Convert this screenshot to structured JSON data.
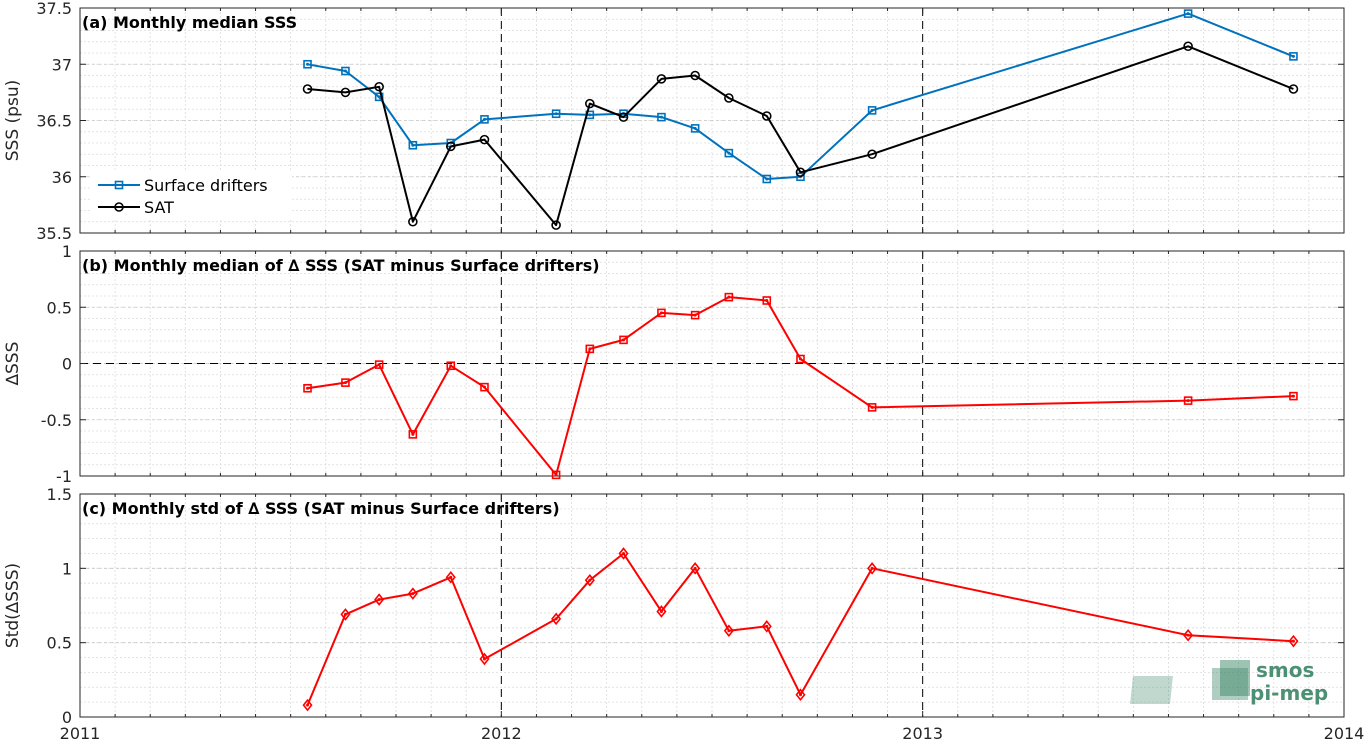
{
  "colors": {
    "drifters": "#0072bd",
    "sat": "#000000",
    "delta": "#ff0000",
    "logo": "#2e7d5b"
  },
  "logo": {
    "line1": "smos",
    "line2": "pi-mep"
  },
  "chart_data": [
    {
      "type": "line",
      "title": "(a) Monthly median SSS",
      "ylabel": "SSS (psu)",
      "ylim": [
        35.5,
        37.5
      ],
      "xlim": [
        2011,
        2014
      ],
      "yticks": [
        "35.5",
        "36",
        "36.5",
        "37",
        "37.5"
      ],
      "xticks": [
        "2011",
        "2012",
        "2013",
        "2014"
      ],
      "grid": true,
      "legend_position": "lower-left",
      "series": [
        {
          "name": "Surface drifters",
          "marker": "square",
          "x": [
            2011.54,
            2011.63,
            2011.71,
            2011.79,
            2011.88,
            2011.96,
            2012.13,
            2012.21,
            2012.29,
            2012.38,
            2012.46,
            2012.54,
            2012.63,
            2012.71,
            2012.88,
            2013.63,
            2013.88
          ],
          "y": [
            37.0,
            36.94,
            36.71,
            36.28,
            36.3,
            36.51,
            36.56,
            36.55,
            36.56,
            36.53,
            36.43,
            36.21,
            35.98,
            36.0,
            36.59,
            37.45,
            37.07
          ]
        },
        {
          "name": "SAT",
          "marker": "circle",
          "x": [
            2011.54,
            2011.63,
            2011.71,
            2011.79,
            2011.88,
            2011.96,
            2012.13,
            2012.21,
            2012.29,
            2012.38,
            2012.46,
            2012.54,
            2012.63,
            2012.71,
            2012.88,
            2013.63,
            2013.88
          ],
          "y": [
            36.78,
            36.75,
            36.8,
            35.6,
            36.27,
            36.33,
            35.57,
            36.65,
            36.53,
            36.87,
            36.9,
            36.7,
            36.54,
            36.04,
            36.2,
            37.16,
            36.78
          ]
        }
      ]
    },
    {
      "type": "line",
      "title": "(b) Monthly median of ∆ SSS (SAT minus Surface drifters)",
      "ylabel": "∆SSS",
      "ylim": [
        -1,
        1
      ],
      "xlim": [
        2011,
        2014
      ],
      "yticks": [
        "-1",
        "-0.5",
        "0",
        "0.5",
        "1"
      ],
      "xticks": [
        "2011",
        "2012",
        "2013",
        "2014"
      ],
      "grid": true,
      "series": [
        {
          "marker": "square",
          "x": [
            2011.54,
            2011.63,
            2011.71,
            2011.79,
            2011.88,
            2011.96,
            2012.13,
            2012.21,
            2012.29,
            2012.38,
            2012.46,
            2012.54,
            2012.63,
            2012.71,
            2012.88,
            2013.63,
            2013.88
          ],
          "y": [
            -0.22,
            -0.17,
            -0.01,
            -0.63,
            -0.02,
            -0.21,
            -0.99,
            0.13,
            0.21,
            0.45,
            0.43,
            0.59,
            0.56,
            0.04,
            -0.39,
            -0.33,
            -0.29
          ]
        }
      ]
    },
    {
      "type": "line",
      "title": "(c) Monthly std of ∆ SSS (SAT minus Surface drifters)",
      "ylabel": "Std(∆SSS)",
      "ylim": [
        0,
        1.5
      ],
      "xlim": [
        2011,
        2014
      ],
      "yticks": [
        "0",
        "0.5",
        "1",
        "1.5"
      ],
      "xticks": [
        "2011",
        "2012",
        "2013",
        "2014"
      ],
      "grid": true,
      "series": [
        {
          "marker": "diamond",
          "x": [
            2011.54,
            2011.63,
            2011.71,
            2011.79,
            2011.88,
            2011.96,
            2012.13,
            2012.21,
            2012.29,
            2012.38,
            2012.46,
            2012.54,
            2012.63,
            2012.71,
            2012.88,
            2013.63,
            2013.88
          ],
          "y": [
            0.08,
            0.69,
            0.79,
            0.83,
            0.94,
            0.39,
            0.66,
            0.92,
            1.1,
            0.71,
            1.0,
            0.58,
            0.61,
            0.15,
            1.0,
            0.55,
            0.51
          ]
        }
      ]
    }
  ]
}
